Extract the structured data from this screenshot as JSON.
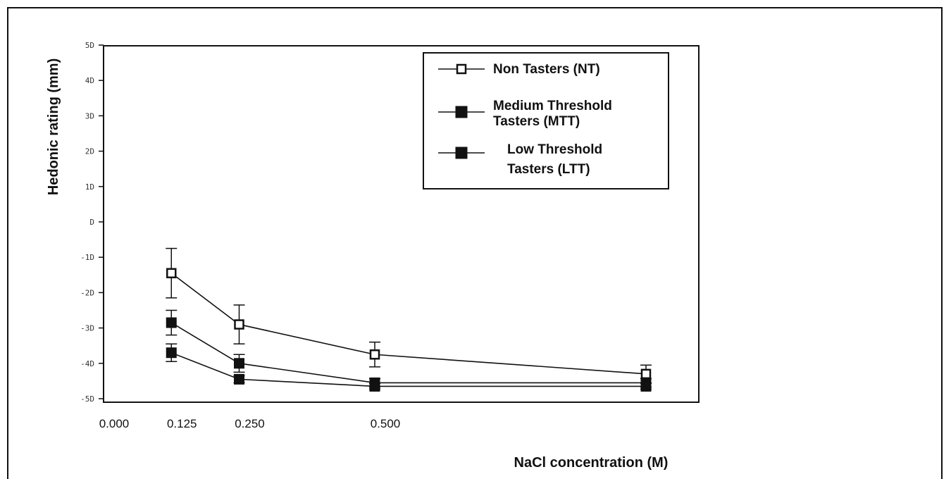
{
  "chart_data": {
    "type": "line",
    "xlabel": "NaCl concentration (M)",
    "ylabel": "Hedonic rating (mm)",
    "ylim": [
      -50,
      50
    ],
    "yticks": [
      {
        "value": 50,
        "label": "5D"
      },
      {
        "value": 40,
        "label": "4D"
      },
      {
        "value": 30,
        "label": "3D"
      },
      {
        "value": 20,
        "label": "2D"
      },
      {
        "value": 10,
        "label": "1D"
      },
      {
        "value": 0,
        "label": "D"
      },
      {
        "value": -10,
        "label": "-1D"
      },
      {
        "value": -20,
        "label": "-2D"
      },
      {
        "value": -30,
        "label": "-3D"
      },
      {
        "value": -40,
        "label": "-4D"
      },
      {
        "value": -50,
        "label": "-5D"
      }
    ],
    "xticks": [
      {
        "value": 0,
        "label": "0.000"
      },
      {
        "value": 0.125,
        "label": "0.125"
      },
      {
        "value": 0.25,
        "label": "0.250"
      },
      {
        "value": 0.5,
        "label": "0.500"
      }
    ],
    "legend_position": "top-right",
    "x": [
      0.125,
      0.25,
      0.5,
      1.0
    ],
    "series": [
      {
        "name": "Non Tasters (NT)",
        "marker": "open-square",
        "color": "#111111",
        "values": [
          -14.5,
          -29,
          -37.5,
          -43
        ],
        "err": [
          7,
          5.5,
          3.5,
          2.5
        ]
      },
      {
        "name": "Medium Threshold Tasters (MTT)",
        "marker": "filled-square",
        "color": "#111111",
        "values": [
          -28.5,
          -40,
          -45.5,
          -45.5
        ],
        "err": [
          3.5,
          2.5,
          1.2,
          1.2
        ]
      },
      {
        "name": "Low Threshold Tasters (LTT)",
        "marker": "filled-square",
        "color": "#111111",
        "values": [
          -37,
          -44.5,
          -46.5,
          -46.5
        ],
        "err": [
          2.5,
          1,
          0.8,
          0.8
        ]
      }
    ]
  }
}
